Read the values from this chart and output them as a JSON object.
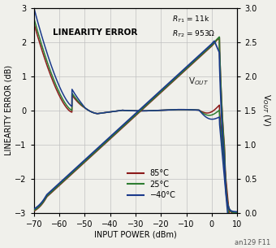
{
  "title_text": "LINEARITY ERROR",
  "xlabel": "INPUT POWER (dBm)",
  "ylabel_left": "LINEARITY ERROR (dB)",
  "ylabel_right": "V$_{OUT}$ (V)",
  "vout_label": "V$_{OUT}$",
  "legend_labels": [
    "85°C",
    "25°C",
    "−40°C"
  ],
  "colors_lin": [
    "#8B1A1A",
    "#2E7D32",
    "#1A3A8B"
  ],
  "colors_vout": [
    "#8B1A1A",
    "#2E7D32",
    "#1A3A8B"
  ],
  "xlim": [
    -70,
    10
  ],
  "ylim_left": [
    -3,
    3
  ],
  "ylim_right": [
    0.0,
    3.0
  ],
  "xticks": [
    -70,
    -60,
    -50,
    -40,
    -30,
    -20,
    -10,
    0,
    10
  ],
  "yticks_left": [
    -3,
    -2,
    -1,
    0,
    1,
    2,
    3
  ],
  "yticks_right": [
    0.0,
    0.5,
    1.0,
    1.5,
    2.0,
    2.5,
    3.0
  ],
  "caption": "an129 F11",
  "background_color": "#f0f0eb",
  "grid_color": "#c0c0c0",
  "rt_annotation": "$R_{T1}$ = 11k\n$R_{T2}$ = 953Ω"
}
